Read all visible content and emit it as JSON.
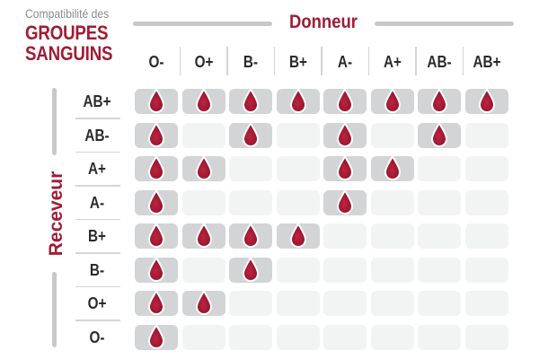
{
  "title": {
    "kicker": "Compatibilité des",
    "line1": "GROUPES",
    "line2": "SANGUINS"
  },
  "axes": {
    "donor": "Donneur",
    "receiver": "Receveur"
  },
  "chart_data": {
    "type": "heatmap",
    "title": "Compatibilité des groupes sanguins",
    "columns_axis_label": "Donneur",
    "rows_axis_label": "Receveur",
    "columns": [
      "O-",
      "O+",
      "B-",
      "B+",
      "A-",
      "A+",
      "AB-",
      "AB+"
    ],
    "rows": [
      "AB+",
      "AB-",
      "A+",
      "A-",
      "B+",
      "B-",
      "O+",
      "O-"
    ],
    "compatible_marker": "blood-drop-icon",
    "legend_position": "none",
    "matrix": [
      [
        1,
        1,
        1,
        1,
        1,
        1,
        1,
        1
      ],
      [
        1,
        0,
        1,
        0,
        1,
        0,
        1,
        0
      ],
      [
        1,
        1,
        0,
        0,
        1,
        1,
        0,
        0
      ],
      [
        1,
        0,
        0,
        0,
        1,
        0,
        0,
        0
      ],
      [
        1,
        1,
        1,
        1,
        0,
        0,
        0,
        0
      ],
      [
        1,
        0,
        1,
        0,
        0,
        0,
        0,
        0
      ],
      [
        1,
        1,
        0,
        0,
        0,
        0,
        0,
        0
      ],
      [
        1,
        0,
        0,
        0,
        0,
        0,
        0,
        0
      ]
    ]
  },
  "colors": {
    "accent_red": "#a01c34",
    "drop_center": "#bd2440",
    "drop_edge": "#8e1129",
    "drop_outline": "#ffffff",
    "cell_filled": "#d2d4d5",
    "cell_empty": "#f2f3f3",
    "rule_gray": "#c7c8c9",
    "separator_gray": "#d4d5d5",
    "label_dark": "#2b2b2b",
    "kicker_gray": "#8c8c8c",
    "background": "#ffffff"
  }
}
